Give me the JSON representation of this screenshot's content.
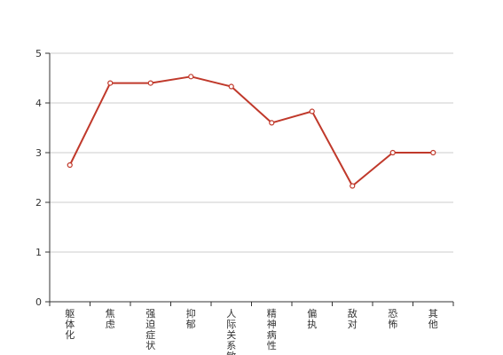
{
  "chart_data": {
    "type": "line",
    "categories": [
      "躯体化",
      "焦虑",
      "强迫症状",
      "抑郁",
      "人际关系敏感",
      "精神病性",
      "偏执",
      "敌对",
      "恐怖",
      "其他"
    ],
    "series": [
      {
        "values": [
          2.75,
          4.4,
          4.4,
          4.53,
          4.33,
          3.6,
          3.83,
          2.33,
          3.0,
          3.0
        ]
      }
    ],
    "title": "",
    "xlabel": "",
    "ylabel": "",
    "ylim": [
      0,
      5
    ],
    "yticks": [
      0,
      1,
      2,
      3,
      4,
      5
    ],
    "grid": true,
    "line_color": "#c0392b",
    "axis_color": "#333333",
    "grid_color": "#cccccc"
  }
}
